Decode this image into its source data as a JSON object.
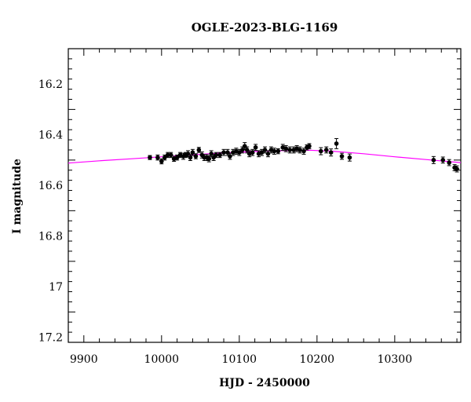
{
  "chart_data": {
    "type": "scatter",
    "title": "OGLE-2023-BLG-1169",
    "xlabel": "HJD - 2450000",
    "ylabel": "I magnitude",
    "xlim": [
      9880,
      10385
    ],
    "ylim": [
      17.22,
      16.06
    ],
    "y_inverted": true,
    "x_ticks": [
      9900,
      10000,
      10100,
      10200,
      10300
    ],
    "x_tick_labels": [
      "9900",
      "10000",
      "10100",
      "10200",
      "10300"
    ],
    "y_ticks": [
      16.2,
      16.4,
      16.6,
      16.8,
      17,
      17.2
    ],
    "y_tick_labels": [
      "16.2",
      "16.4",
      "16.6",
      "16.8",
      "17",
      "17.2"
    ],
    "grid": false,
    "colors": {
      "points": "#000000",
      "model": "#ff00ff"
    },
    "series": [
      {
        "kind": "points",
        "x": [
          9985,
          9995,
          10000,
          10004,
          10008,
          10012,
          10016,
          10020,
          10024,
          10028,
          10031,
          10034,
          10037,
          10040,
          10044,
          10048,
          10052,
          10055,
          10058,
          10061,
          10064,
          10067,
          10070,
          10075,
          10080,
          10085,
          10088,
          10092,
          10096,
          10100,
          10104,
          10107,
          10110,
          10113,
          10117,
          10121,
          10125,
          10129,
          10133,
          10137,
          10141,
          10145,
          10150,
          10156,
          10160,
          10165,
          10170,
          10174,
          10178,
          10183,
          10187,
          10190,
          10205,
          10212,
          10218,
          10225,
          10232,
          10242,
          10350,
          10362,
          10370,
          10377,
          10380
        ],
        "y": [
          16.49,
          16.49,
          16.505,
          16.49,
          16.48,
          16.48,
          16.495,
          16.49,
          16.48,
          16.485,
          16.48,
          16.475,
          16.49,
          16.47,
          16.485,
          16.46,
          16.48,
          16.49,
          16.49,
          16.495,
          16.475,
          16.49,
          16.48,
          16.48,
          16.47,
          16.47,
          16.485,
          16.47,
          16.465,
          16.47,
          16.46,
          16.445,
          16.46,
          16.475,
          16.47,
          16.45,
          16.475,
          16.47,
          16.46,
          16.475,
          16.46,
          16.465,
          16.465,
          16.45,
          16.455,
          16.46,
          16.46,
          16.455,
          16.46,
          16.465,
          16.45,
          16.445,
          16.465,
          16.46,
          16.47,
          16.435,
          16.485,
          16.49,
          16.5,
          16.5,
          16.51,
          16.53,
          16.535
        ],
        "yerr": [
          0.008,
          0.01,
          0.01,
          0.01,
          0.01,
          0.01,
          0.01,
          0.01,
          0.01,
          0.012,
          0.01,
          0.012,
          0.012,
          0.012,
          0.01,
          0.01,
          0.012,
          0.012,
          0.012,
          0.012,
          0.012,
          0.012,
          0.01,
          0.01,
          0.012,
          0.012,
          0.012,
          0.012,
          0.012,
          0.012,
          0.012,
          0.014,
          0.012,
          0.012,
          0.012,
          0.012,
          0.012,
          0.012,
          0.012,
          0.012,
          0.012,
          0.012,
          0.01,
          0.012,
          0.012,
          0.012,
          0.012,
          0.012,
          0.012,
          0.012,
          0.01,
          0.01,
          0.014,
          0.012,
          0.014,
          0.02,
          0.012,
          0.014,
          0.014,
          0.012,
          0.012,
          0.012,
          0.012
        ]
      },
      {
        "kind": "line",
        "x": [
          9880,
          9920,
          9960,
          10000,
          10040,
          10080,
          10120,
          10160,
          10190,
          10220,
          10260,
          10300,
          10340,
          10385
        ],
        "y": [
          16.512,
          16.503,
          16.495,
          16.487,
          16.479,
          16.472,
          16.466,
          16.462,
          16.461,
          16.465,
          16.475,
          16.487,
          16.498,
          16.51
        ]
      }
    ]
  }
}
